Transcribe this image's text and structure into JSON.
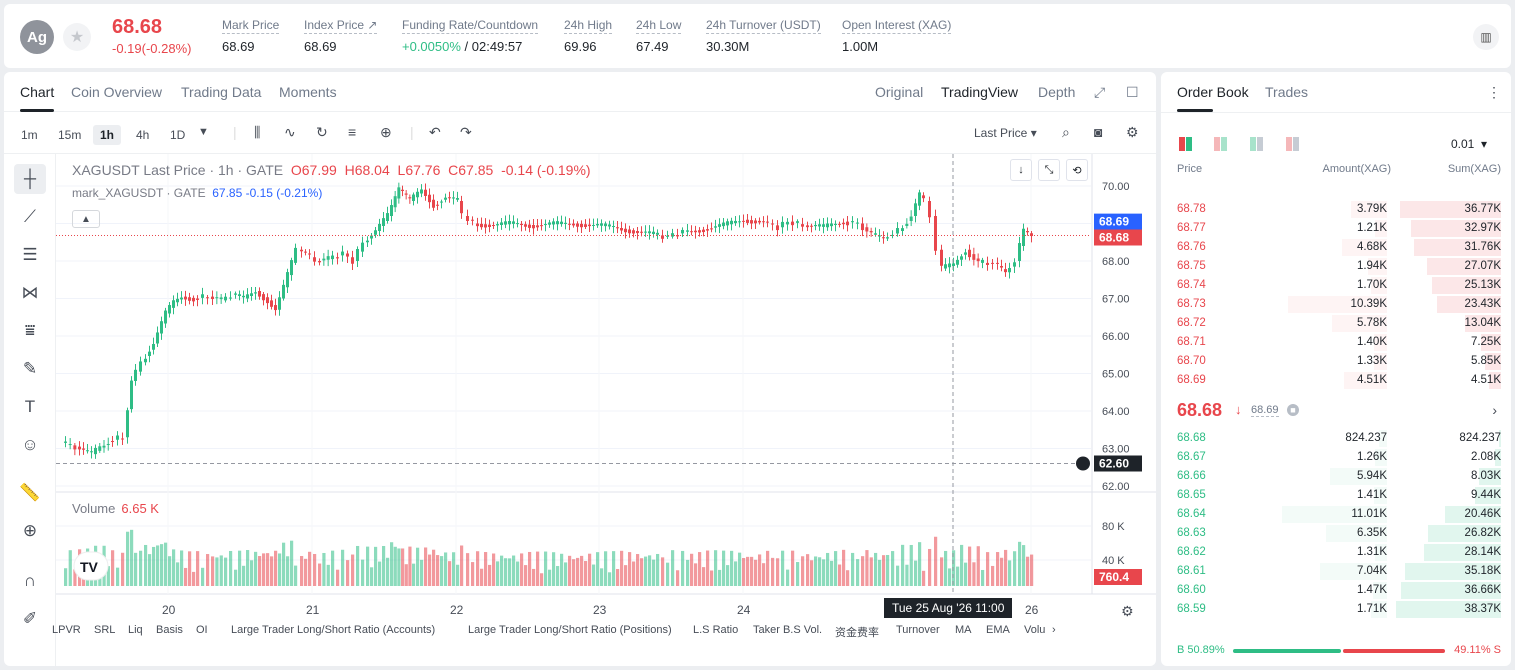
{
  "header": {
    "avatar_text": "Ag",
    "last_price": "68.68",
    "change": "-0.19(-0.28%)",
    "stats": [
      {
        "label": "Mark Price",
        "value": "68.69"
      },
      {
        "label": "Index Price ↗",
        "value": "68.69"
      },
      {
        "label": "Funding Rate/Countdown",
        "value_green": "+0.0050%",
        "value": " / 02:49:57"
      },
      {
        "label": "24h High",
        "value": "69.96"
      },
      {
        "label": "24h Low",
        "value": "67.49"
      },
      {
        "label": "24h Turnover (USDT)",
        "value": "30.30M"
      },
      {
        "label": "Open Interest (XAG)",
        "value": "1.00M"
      }
    ]
  },
  "chart_tabs": [
    "Chart",
    "Coin Overview",
    "Trading Data",
    "Moments"
  ],
  "view_options": [
    "Original",
    "TradingView",
    "Depth"
  ],
  "timeframes": [
    "1m",
    "15m",
    "1h",
    "4h",
    "1D"
  ],
  "price_source": "Last Price",
  "legend": {
    "symbol": "XAGUSDT Last Price · 1h · GATE",
    "o": "O67.99",
    "h": "H68.04",
    "l": "L67.76",
    "c": "C67.85",
    "chg": "-0.14 (-0.19%)",
    "mark_name": "mark_XAGUSDT · GATE",
    "mark_val": "67.85 -0.15 (-0.21%)"
  },
  "volume_legend": {
    "label": "Volume",
    "value": "6.65 K"
  },
  "crosshair_time": "Tue 25 Aug '26   11:00",
  "indicators": [
    "LPVR",
    "SRL",
    "Liq",
    "Basis",
    "OI",
    "Large Trader Long/Short Ratio (Accounts)",
    "Large Trader Long/Short Ratio (Positions)",
    "L.S Ratio",
    "Taker B.S Vol.",
    "资金费率",
    "Turnover",
    "MA",
    "EMA",
    "Volu"
  ],
  "chart_data": {
    "type": "candlestick",
    "price_axis": [
      "70.00",
      "69.00",
      "68.00",
      "67.00",
      "66.00",
      "65.00",
      "64.00",
      "63.00",
      "62.00"
    ],
    "volume_axis": [
      "80 K",
      "40 K"
    ],
    "date_ticks": [
      "20",
      "21",
      "22",
      "23",
      "24",
      "26"
    ],
    "last_price_label": "68.68",
    "mark_price_label": "68.69",
    "crosshair_price_label": "62.60",
    "volume_label": "760.4",
    "colors": {
      "up": "#2ebd85",
      "down": "#e8464c",
      "mark": "#2962ff"
    }
  },
  "orderbook": {
    "tabs": [
      "Order Book",
      "Trades"
    ],
    "tick_size": "0.01",
    "columns": [
      "Price",
      "Amount(XAG)",
      "Sum(XAG)"
    ],
    "asks": [
      {
        "price": "68.78",
        "amount": "3.79K",
        "sum": "36.77K"
      },
      {
        "price": "68.77",
        "amount": "1.21K",
        "sum": "32.97K"
      },
      {
        "price": "68.76",
        "amount": "4.68K",
        "sum": "31.76K"
      },
      {
        "price": "68.75",
        "amount": "1.94K",
        "sum": "27.07K"
      },
      {
        "price": "68.74",
        "amount": "1.70K",
        "sum": "25.13K"
      },
      {
        "price": "68.73",
        "amount": "10.39K",
        "sum": "23.43K"
      },
      {
        "price": "68.72",
        "amount": "5.78K",
        "sum": "13.04K"
      },
      {
        "price": "68.71",
        "amount": "1.40K",
        "sum": "7.25K"
      },
      {
        "price": "68.70",
        "amount": "1.33K",
        "sum": "5.85K"
      },
      {
        "price": "68.69",
        "amount": "4.51K",
        "sum": "4.51K"
      }
    ],
    "mid_price": "68.68",
    "mid_mark": "68.69",
    "bids": [
      {
        "price": "68.68",
        "amount": "824.237",
        "sum": "824.237"
      },
      {
        "price": "68.67",
        "amount": "1.26K",
        "sum": "2.08K"
      },
      {
        "price": "68.66",
        "amount": "5.94K",
        "sum": "8.03K"
      },
      {
        "price": "68.65",
        "amount": "1.41K",
        "sum": "9.44K"
      },
      {
        "price": "68.64",
        "amount": "11.01K",
        "sum": "20.46K"
      },
      {
        "price": "68.63",
        "amount": "6.35K",
        "sum": "26.82K"
      },
      {
        "price": "68.62",
        "amount": "1.31K",
        "sum": "28.14K"
      },
      {
        "price": "68.61",
        "amount": "7.04K",
        "sum": "35.18K"
      },
      {
        "price": "68.60",
        "amount": "1.47K",
        "sum": "36.66K"
      },
      {
        "price": "68.59",
        "amount": "1.71K",
        "sum": "38.37K"
      }
    ],
    "buy_ratio": "B 50.89%",
    "sell_ratio": "49.11% S"
  }
}
